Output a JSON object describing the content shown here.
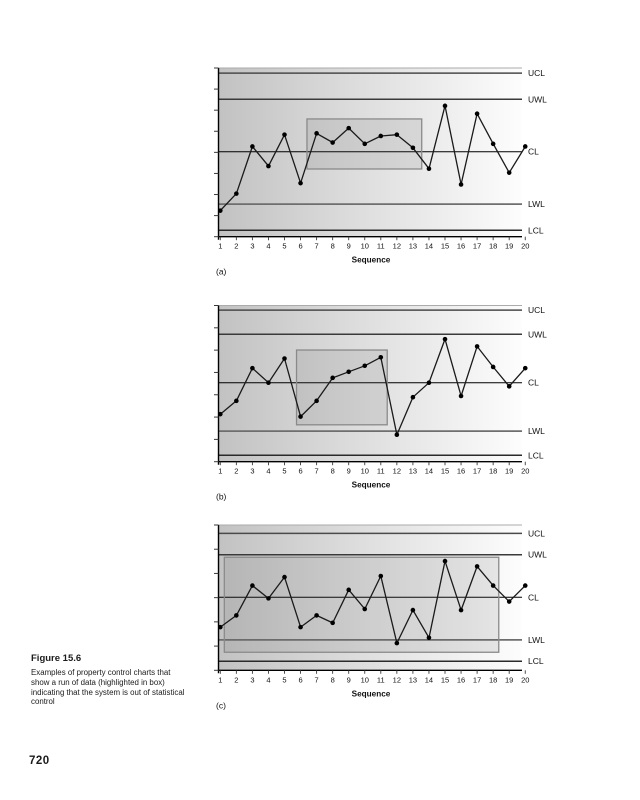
{
  "page": {
    "number": "720",
    "figure_label": "Figure 15.6",
    "caption_lines": [
      "Examples of property control charts that",
      "show a run of data (highlighted in box)",
      "indicating that the system is out of statistical",
      "control"
    ]
  },
  "colors": {
    "plot_gradient_left": "#c2c2c2",
    "plot_gradient_right": "#fdfdfd",
    "plot_top_edge": "#ababab",
    "highlight_fill": "rgba(90,90,90,0.13)",
    "highlight_border": "#8a8a8a",
    "series_line": "#1a1a1a",
    "axis_color": "#000000",
    "tick_color": "#3a3a3a",
    "text_color": "#111111",
    "limit_line_colors": {
      "UCL": "#4a4a4a",
      "UWL": "#3a3a3a",
      "CL": "#000000",
      "LWL": "#6e6e6e",
      "LCL": "#2a2a2a"
    }
  },
  "chart_data": [
    {
      "type": "line",
      "id": "a",
      "panel_label": "(a)",
      "xlabel": "Sequence",
      "y_units": "sigma relative to CL (CL=0, UWL/LWL=±2, UCL/LCL=±3)",
      "ylim_sigma": [
        -3.3,
        3.3
      ],
      "grid": false,
      "x_ticks": [
        "1",
        "2",
        "3",
        "4",
        "5",
        "6",
        "7",
        "8",
        "9",
        "10",
        "11",
        "12",
        "13",
        "14",
        "15",
        "16",
        "17",
        "18",
        "19",
        "20"
      ],
      "series": [
        {
          "name": "property",
          "values_sigma": [
            -2.25,
            -1.6,
            0.2,
            -0.55,
            0.65,
            -1.2,
            0.7,
            0.35,
            0.9,
            0.3,
            0.6,
            0.65,
            0.15,
            -0.65,
            1.75,
            -1.25,
            1.45,
            0.3,
            -0.8,
            0.2
          ]
        }
      ],
      "limit_lines": [
        {
          "label": "UCL",
          "sigma": 3
        },
        {
          "label": "UWL",
          "sigma": 2
        },
        {
          "label": "CL",
          "sigma": 0
        },
        {
          "label": "LWL",
          "sigma": -2
        },
        {
          "label": "LCL",
          "sigma": -3
        }
      ],
      "highlight_box": {
        "seq_from": 6.4,
        "seq_to": 13.55,
        "sigma_top": 1.25,
        "sigma_bottom": -0.66,
        "covers_points": "7-13"
      }
    },
    {
      "type": "line",
      "id": "b",
      "panel_label": "(b)",
      "xlabel": "Sequence",
      "y_units": "sigma relative to CL (CL=0, UWL/LWL=±2, UCL/LCL=±3)",
      "ylim_sigma": [
        -3.3,
        3.3
      ],
      "grid": false,
      "x_ticks": [
        "1",
        "2",
        "3",
        "4",
        "5",
        "6",
        "7",
        "8",
        "9",
        "10",
        "11",
        "12",
        "13",
        "14",
        "15",
        "16",
        "17",
        "18",
        "19",
        "20"
      ],
      "series": [
        {
          "name": "property",
          "values_sigma": [
            -1.3,
            -0.75,
            0.6,
            0.0,
            1.0,
            -1.4,
            -0.75,
            0.2,
            0.45,
            0.7,
            1.05,
            -2.15,
            -0.6,
            0.0,
            1.8,
            -0.55,
            1.5,
            0.65,
            -0.15,
            0.6
          ]
        }
      ],
      "limit_lines": [
        {
          "label": "UCL",
          "sigma": 3
        },
        {
          "label": "UWL",
          "sigma": 2
        },
        {
          "label": "CL",
          "sigma": 0
        },
        {
          "label": "LWL",
          "sigma": -2
        },
        {
          "label": "LCL",
          "sigma": -3
        }
      ],
      "highlight_box": {
        "seq_from": 5.75,
        "seq_to": 11.4,
        "sigma_top": 1.35,
        "sigma_bottom": -1.74,
        "covers_points": "6-11"
      }
    },
    {
      "type": "line",
      "id": "c",
      "panel_label": "(c)",
      "xlabel": "Sequence",
      "y_units": "sigma relative to CL (CL=0, UWL/LWL=±2, UCL/LCL=±3)",
      "ylim_sigma": [
        -3.4,
        3.4
      ],
      "grid": false,
      "x_ticks": [
        "1",
        "2",
        "3",
        "4",
        "5",
        "6",
        "7",
        "8",
        "9",
        "10",
        "11",
        "12",
        "13",
        "14",
        "15",
        "16",
        "17",
        "18",
        "19",
        "20"
      ],
      "series": [
        {
          "name": "property",
          "values_sigma": [
            -1.4,
            -0.85,
            0.55,
            -0.05,
            0.95,
            -1.4,
            -0.85,
            -1.2,
            0.35,
            -0.55,
            1.0,
            -2.15,
            -0.6,
            -1.9,
            1.7,
            -0.6,
            1.45,
            0.55,
            -0.2,
            0.55
          ]
        }
      ],
      "limit_lines": [
        {
          "label": "UCL",
          "sigma": 3
        },
        {
          "label": "UWL",
          "sigma": 2
        },
        {
          "label": "CL",
          "sigma": 0
        },
        {
          "label": "LWL",
          "sigma": -2
        },
        {
          "label": "LCL",
          "sigma": -3
        }
      ],
      "highlight_box": {
        "seq_from": 1.25,
        "seq_to": 18.35,
        "sigma_top": 1.88,
        "sigma_bottom": -2.58,
        "covers_points": "1-18"
      }
    }
  ]
}
